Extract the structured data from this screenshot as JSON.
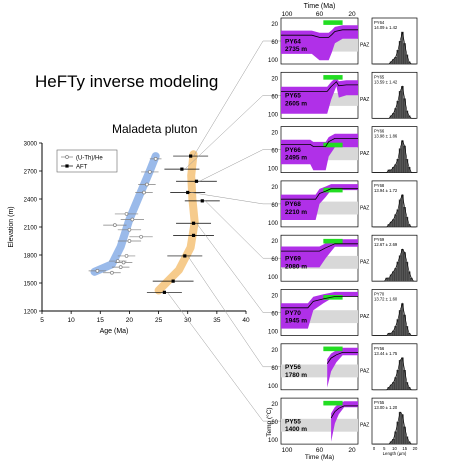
{
  "heading": "HeFTy inverse modeling",
  "chart_data": [
    {
      "type": "scatter",
      "title": "Maladeta pluton",
      "xlabel": "Age (Ma)",
      "ylabel": "Elevation (m)",
      "xlim": [
        5,
        40
      ],
      "ylim": [
        1200,
        3000
      ],
      "xticks": [
        5,
        10,
        15,
        20,
        25,
        30,
        35,
        40
      ],
      "yticks": [
        1200,
        1500,
        1800,
        2100,
        2400,
        2700,
        3000
      ],
      "legend_position": "top-left",
      "series": [
        {
          "name": "(U-Th)/He",
          "marker": "open-circle",
          "color": "#808080",
          "points": [
            {
              "x": 24.5,
              "y": 2830,
              "err": 1.0
            },
            {
              "x": 23.5,
              "y": 2690,
              "err": 1.5
            },
            {
              "x": 23.0,
              "y": 2555,
              "err": 1.5
            },
            {
              "x": 22.5,
              "y": 2470,
              "err": 1.5
            },
            {
              "x": 19.5,
              "y": 2240,
              "err": 2.0
            },
            {
              "x": 20.5,
              "y": 2180,
              "err": 2.0
            },
            {
              "x": 17.5,
              "y": 2120,
              "err": 2.0
            },
            {
              "x": 20.0,
              "y": 2070,
              "err": 2.0
            },
            {
              "x": 22.0,
              "y": 1995,
              "err": 2.0
            },
            {
              "x": 20.0,
              "y": 1950,
              "err": 2.0
            },
            {
              "x": 19.5,
              "y": 1790,
              "err": 1.5
            },
            {
              "x": 18.0,
              "y": 1735,
              "err": 1.5
            },
            {
              "x": 19.0,
              "y": 1720,
              "err": 1.5
            },
            {
              "x": 18.5,
              "y": 1670,
              "err": 1.5
            },
            {
              "x": 14.5,
              "y": 1630,
              "err": 1.5
            },
            {
              "x": 17.0,
              "y": 1610,
              "err": 1.5
            }
          ]
        },
        {
          "name": "AFT",
          "marker": "filled-square",
          "color": "#000000",
          "points": [
            {
              "x": 30.5,
              "y": 2860,
              "err": 3.0
            },
            {
              "x": 29.0,
              "y": 2720,
              "err": 3.0
            },
            {
              "x": 31.5,
              "y": 2590,
              "err": 3.5
            },
            {
              "x": 30.0,
              "y": 2470,
              "err": 3.0
            },
            {
              "x": 32.5,
              "y": 2380,
              "err": 3.0
            },
            {
              "x": 31.0,
              "y": 2140,
              "err": 3.0
            },
            {
              "x": 31.0,
              "y": 2010,
              "err": 3.5
            },
            {
              "x": 29.5,
              "y": 1790,
              "err": 3.0
            },
            {
              "x": 27.5,
              "y": 1520,
              "err": 3.5
            },
            {
              "x": 26.0,
              "y": 1400,
              "err": 3.0
            }
          ]
        }
      ],
      "trend_bands": [
        {
          "color": "#8fb3e8",
          "points": [
            [
              24.5,
              2860
            ],
            [
              23.5,
              2700
            ],
            [
              22.0,
              2480
            ],
            [
              20.0,
              2180
            ],
            [
              18.5,
              1890
            ],
            [
              17.0,
              1700
            ],
            [
              14.0,
              1620
            ]
          ]
        },
        {
          "color": "#f5c580",
          "points": [
            [
              31.0,
              2880
            ],
            [
              30.6,
              2650
            ],
            [
              30.8,
              2400
            ],
            [
              31.2,
              2150
            ],
            [
              30.5,
              1880
            ],
            [
              28.5,
              1640
            ],
            [
              25.0,
              1420
            ]
          ]
        }
      ]
    },
    {
      "type": "area",
      "title": "Time (Ma)",
      "time_ticks": [
        100,
        60,
        20
      ],
      "time_ticks_bottom": [
        100,
        60,
        20
      ],
      "time_label_bottom": "Time (Ma)",
      "temp_label": "Temp (°C)",
      "temp_ticks": [
        20,
        60,
        100
      ],
      "paz_label": "PAZ",
      "colors": {
        "fill": "#b030e8",
        "fit": "#22dd22",
        "band": "#d8d8d8"
      },
      "samples": [
        {
          "label": "PY64",
          "elev": "2735 m",
          "magenta": [
            [
              1,
              0.78
            ],
            [
              0.6,
              0.78
            ],
            [
              0.5,
              0.92
            ],
            [
              0.38,
              0.92
            ],
            [
              0.34,
              0.75
            ],
            [
              0.3,
              0.55
            ],
            [
              0.2,
              0.45
            ],
            [
              0,
              0.45
            ]
          ],
          "green_top": 0.05
        },
        {
          "label": "PY65",
          "elev": "2605 m",
          "magenta": [
            [
              1,
              0.9
            ],
            [
              0.4,
              0.9
            ],
            [
              0.35,
              0.6
            ],
            [
              0.28,
              0.3
            ],
            [
              0.25,
              0.55
            ],
            [
              0.15,
              0.5
            ],
            [
              0,
              0.5
            ]
          ],
          "green_top": 0.06
        },
        {
          "label": "PY66",
          "elev": "2495 m",
          "magenta": [
            [
              1,
              0.82
            ],
            [
              0.62,
              0.82
            ],
            [
              0.58,
              0.95
            ],
            [
              0.42,
              0.95
            ],
            [
              0.38,
              0.65
            ],
            [
              0.3,
              0.45
            ],
            [
              0,
              0.45
            ]
          ],
          "green_top": 0.35
        },
        {
          "label": "PY68",
          "elev": "2210 m",
          "magenta": [
            [
              1,
              0.85
            ],
            [
              0.55,
              0.85
            ],
            [
              0.5,
              0.5
            ],
            [
              0.42,
              0.35
            ],
            [
              0.35,
              0.2
            ],
            [
              0,
              0.2
            ]
          ],
          "green_top": 0.15
        },
        {
          "label": "PY69",
          "elev": "2080 m",
          "magenta": [
            [
              1,
              0.7
            ],
            [
              0.5,
              0.7
            ],
            [
              0.42,
              0.5
            ],
            [
              0.3,
              0.25
            ],
            [
              0,
              0.25
            ]
          ],
          "green_top": 0.08
        },
        {
          "label": "PY70",
          "elev": "1945 m",
          "magenta": [
            [
              1,
              0.85
            ],
            [
              0.65,
              0.85
            ],
            [
              0.58,
              0.45
            ],
            [
              0.45,
              0.3
            ],
            [
              0.3,
              0.15
            ],
            [
              0,
              0.15
            ]
          ],
          "green_top": 0.12
        },
        {
          "label": "PY56",
          "elev": "1780 m",
          "magenta": [
            [
              0.4,
              0.95
            ],
            [
              0.35,
              0.6
            ],
            [
              0.28,
              0.4
            ],
            [
              0.2,
              0.25
            ],
            [
              0,
              0.25
            ]
          ],
          "green_top": 0.06
        },
        {
          "label": "PY55",
          "elev": "1400 m",
          "magenta": [
            [
              0.35,
              0.95
            ],
            [
              0.3,
              0.55
            ],
            [
              0.25,
              0.35
            ],
            [
              0.18,
              0.2
            ],
            [
              0,
              0.2
            ]
          ],
          "green_top": 0.06
        }
      ]
    },
    {
      "type": "bar",
      "xlabel": "Length (µm)",
      "xticks": [
        0,
        5,
        10,
        15,
        20
      ],
      "histograms": [
        {
          "id": "PY64",
          "text": "PY64\n14.09 ± 1.42",
          "bars": [
            0,
            0,
            0,
            0,
            0,
            0,
            0,
            0,
            1,
            2,
            3,
            6,
            10,
            14,
            9,
            4,
            1,
            0,
            0,
            0
          ]
        },
        {
          "id": "PY65",
          "text": "PY65\n13.59 ± 1.42",
          "bars": [
            0,
            0,
            0,
            0,
            0,
            0,
            0,
            0,
            1,
            2,
            4,
            7,
            11,
            13,
            8,
            3,
            1,
            0,
            0,
            0
          ]
        },
        {
          "id": "PY66",
          "text": "PY66\n13.98 ± 1.86",
          "bars": [
            0,
            0,
            0,
            0,
            0,
            0,
            0,
            1,
            1,
            2,
            3,
            5,
            9,
            12,
            10,
            5,
            2,
            0,
            0,
            0
          ]
        },
        {
          "id": "PY68",
          "text": "PY68\n13.94 ± 1.72",
          "bars": [
            0,
            0,
            0,
            0,
            0,
            0,
            0,
            1,
            2,
            3,
            5,
            7,
            11,
            13,
            8,
            4,
            1,
            0,
            0,
            0
          ]
        },
        {
          "id": "PY69",
          "text": "PY69\n12.67 ± 2.69",
          "bars": [
            0,
            0,
            0,
            0,
            0,
            0,
            1,
            1,
            2,
            3,
            4,
            6,
            8,
            10,
            9,
            6,
            3,
            1,
            0,
            0
          ]
        },
        {
          "id": "PY70",
          "text": "PY70\n13.72 ± 1.60",
          "bars": [
            0,
            0,
            0,
            0,
            0,
            0,
            0,
            1,
            1,
            2,
            4,
            7,
            11,
            14,
            9,
            4,
            1,
            0,
            0,
            0
          ]
        },
        {
          "id": "PY56",
          "text": "PY56\n13.44 ± 1.75",
          "bars": [
            0,
            0,
            0,
            0,
            0,
            0,
            0,
            1,
            2,
            3,
            5,
            8,
            12,
            13,
            8,
            3,
            1,
            0,
            0,
            0
          ]
        },
        {
          "id": "PY55",
          "text": "PY55\n13.00 ± 1.20",
          "bars": [
            0,
            0,
            0,
            0,
            0,
            0,
            0,
            0,
            1,
            2,
            5,
            9,
            13,
            12,
            7,
            3,
            1,
            0,
            0,
            0
          ]
        }
      ]
    }
  ]
}
